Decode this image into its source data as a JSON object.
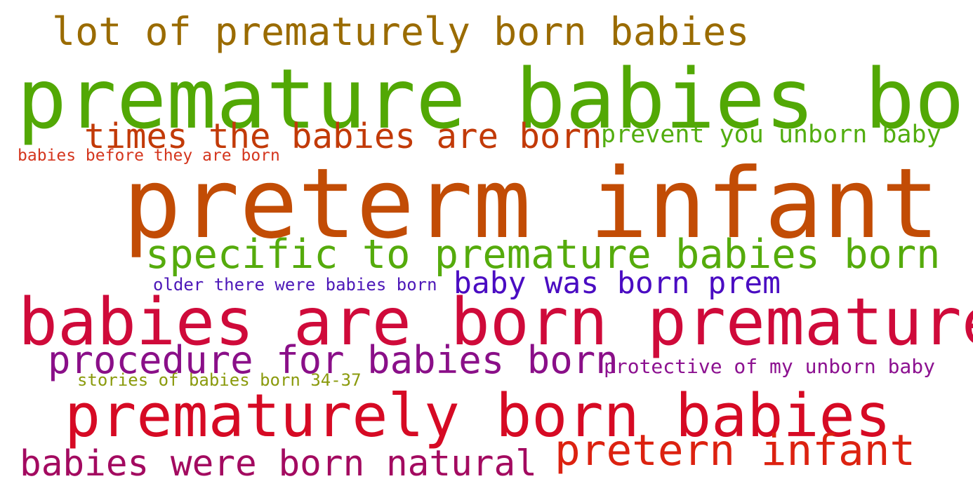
{
  "phrases": [
    {
      "text": "lot of premature‌ly born babies",
      "color": "#9a6b00"
    },
    {
      "text": "premature babies born",
      "color": "#52a805"
    },
    {
      "text": "times the babies are born",
      "color": "#c23a08"
    },
    {
      "text": "prevent you unborn baby",
      "color": "#52ad0f"
    },
    {
      "text": "babies before they are born",
      "color": "#d4351d"
    },
    {
      "text": "preterm infant",
      "color": "#c24c05"
    },
    {
      "text": "specific to premature babies born",
      "color": "#55ab0c"
    },
    {
      "text": "older there were babies born",
      "color": "#4d18b8"
    },
    {
      "text": "baby was born prem",
      "color": "#4a0cc2"
    },
    {
      "text": "babies are born premature",
      "color": "#cf0a3a"
    },
    {
      "text": "procedure for babies born",
      "color": "#8a0f88"
    },
    {
      "text": "protective of my unborn baby",
      "color": "#8c1190"
    },
    {
      "text": "stories of babies born 34-37",
      "color": "#8a9a0c"
    },
    {
      "text": "prematurely born babies",
      "color": "#d60a24"
    },
    {
      "text": "pretern infant",
      "color": "#dc2210"
    },
    {
      "text": "babies were born natural",
      "color": "#a30a60"
    }
  ]
}
